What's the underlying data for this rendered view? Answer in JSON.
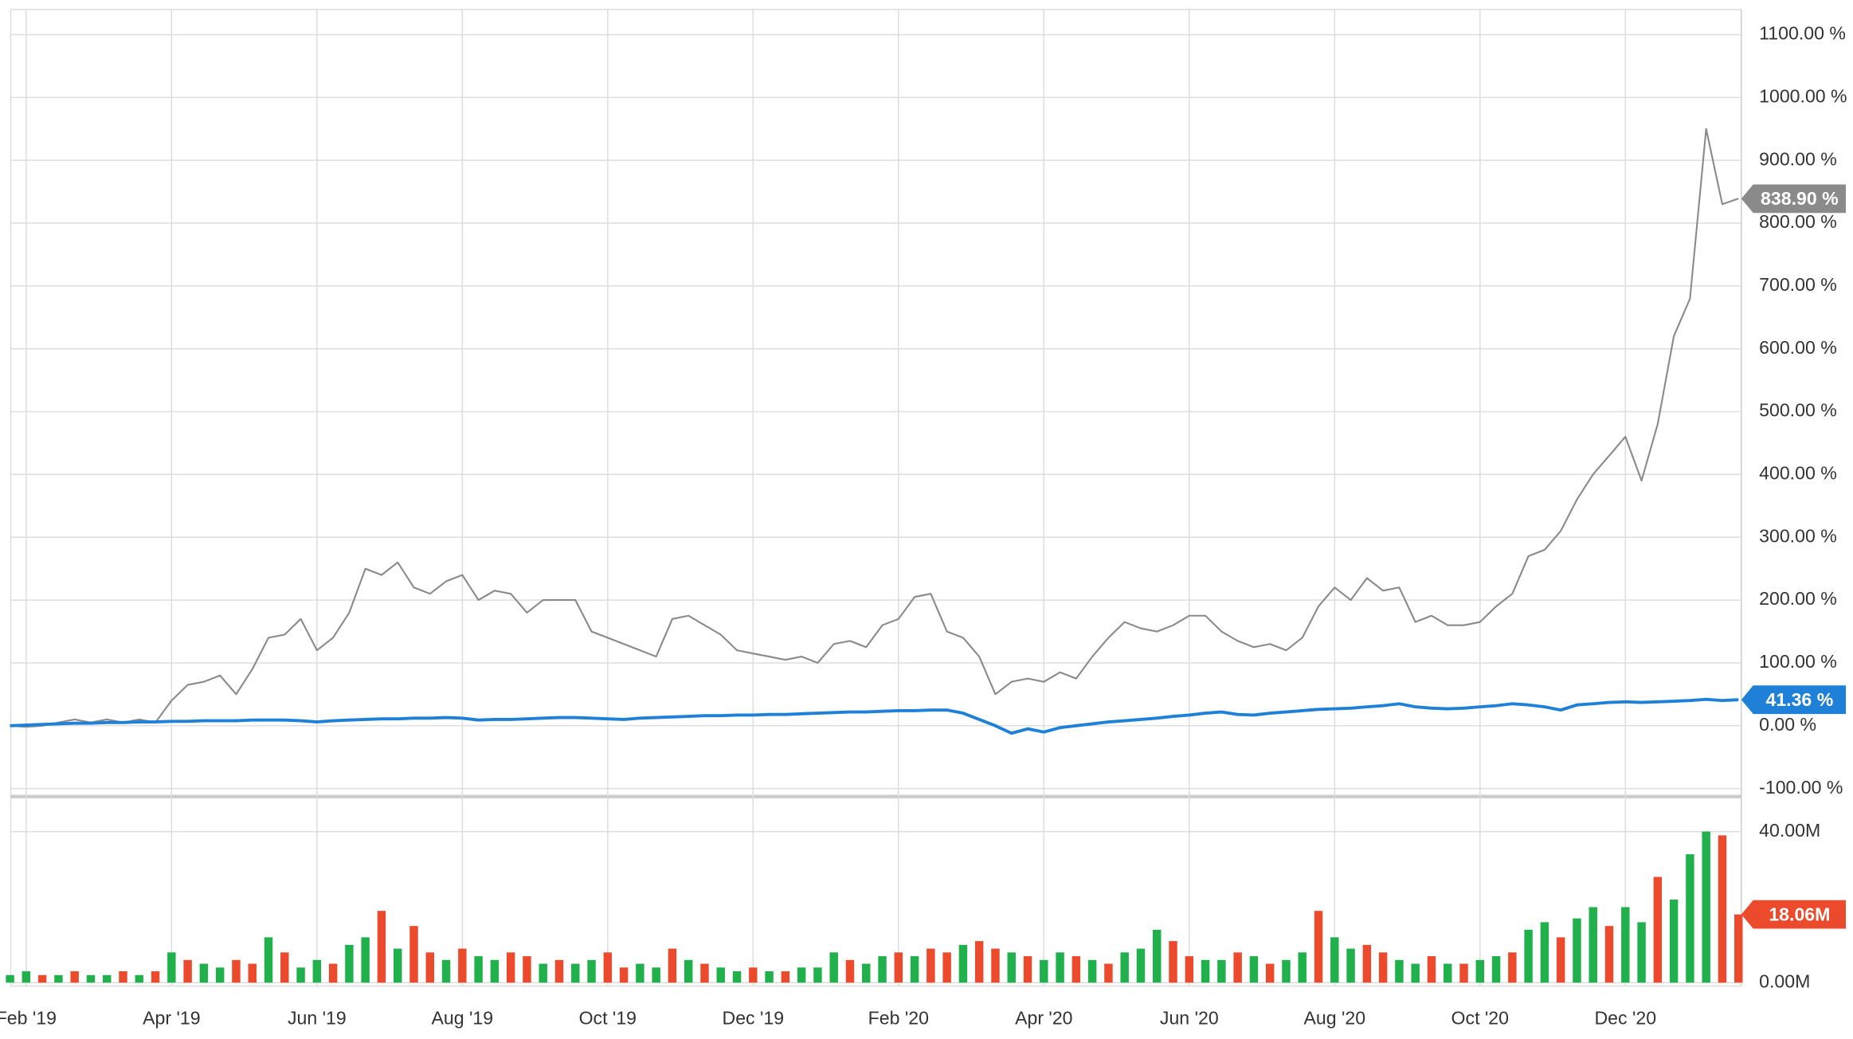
{
  "chart_data": {
    "type": "line",
    "categories": [
      null,
      "Feb '19",
      null,
      null,
      null,
      null,
      null,
      null,
      null,
      null,
      "Apr '19",
      null,
      null,
      null,
      null,
      null,
      null,
      null,
      null,
      "Jun '19",
      null,
      null,
      null,
      null,
      null,
      null,
      null,
      null,
      "Aug '19",
      null,
      null,
      null,
      null,
      null,
      null,
      null,
      null,
      "Oct '19",
      null,
      null,
      null,
      null,
      null,
      null,
      null,
      null,
      "Dec '19",
      null,
      null,
      null,
      null,
      null,
      null,
      null,
      null,
      "Feb '20",
      null,
      null,
      null,
      null,
      null,
      null,
      null,
      null,
      "Apr '20",
      null,
      null,
      null,
      null,
      null,
      null,
      null,
      null,
      "Jun '20",
      null,
      null,
      null,
      null,
      null,
      null,
      null,
      null,
      "Aug '20",
      null,
      null,
      null,
      null,
      null,
      null,
      null,
      null,
      "Oct '20",
      null,
      null,
      null,
      null,
      null,
      null,
      null,
      null,
      "Dec '20",
      null,
      null,
      null,
      null,
      null,
      null,
      null
    ],
    "ylim": [
      -108,
      1140
    ],
    "yticks": [
      {
        "value": -100,
        "label": "-100.00 %"
      },
      {
        "value": 0,
        "label": "0.00 %"
      },
      {
        "value": 100,
        "label": "100.00 %"
      },
      {
        "value": 200,
        "label": "200.00 %"
      },
      {
        "value": 300,
        "label": "300.00 %"
      },
      {
        "value": 400,
        "label": "400.00 %"
      },
      {
        "value": 500,
        "label": "500.00 %"
      },
      {
        "value": 600,
        "label": "600.00 %"
      },
      {
        "value": 700,
        "label": "700.00 %"
      },
      {
        "value": 800,
        "label": "800.00 %"
      },
      {
        "value": 900,
        "label": "900.00 %"
      },
      {
        "value": 1000,
        "label": "1000.00 %"
      },
      {
        "value": 1100,
        "label": "1100.00 %"
      }
    ],
    "y2lim": [
      -0.9,
      48.5
    ],
    "y2ticks": [
      {
        "value": 0,
        "label": "0.00M"
      },
      {
        "value": 40,
        "label": "40.00M"
      }
    ],
    "grid": true,
    "series": [
      {
        "color": "#8a8a8a",
        "values": [
          0,
          -2,
          0,
          5,
          10,
          5,
          10,
          5,
          10,
          5,
          40,
          65,
          70,
          80,
          50,
          90,
          140,
          145,
          170,
          120,
          140,
          180,
          250,
          240,
          260,
          220,
          210,
          230,
          240,
          200,
          215,
          210,
          180,
          200,
          200,
          200,
          150,
          140,
          130,
          120,
          110,
          170,
          175,
          160,
          145,
          120,
          115,
          110,
          105,
          110,
          100,
          130,
          135,
          125,
          160,
          170,
          205,
          210,
          150,
          140,
          110,
          50,
          70,
          75,
          70,
          85,
          75,
          110,
          140,
          165,
          155,
          150,
          160,
          175,
          175,
          150,
          135,
          125,
          130,
          120,
          140,
          190,
          220,
          200,
          235,
          215,
          220,
          165,
          175,
          160,
          160,
          165,
          190,
          210,
          270,
          280,
          310,
          360,
          400,
          430,
          460,
          390,
          480,
          620,
          680,
          950,
          830,
          838.9
        ],
        "value_labels": [
          null,
          null,
          null,
          null,
          null,
          null,
          null,
          null,
          null,
          null,
          null,
          null,
          null,
          null,
          null,
          null,
          null,
          null,
          null,
          null,
          null,
          null,
          null,
          null,
          null,
          null,
          null,
          null,
          null,
          null,
          null,
          null,
          null,
          null,
          null,
          null,
          null,
          null,
          null,
          null,
          null,
          null,
          null,
          null,
          null,
          null,
          null,
          null,
          null,
          null,
          null,
          null,
          null,
          null,
          null,
          null,
          null,
          null,
          null,
          null,
          null,
          null,
          null,
          null,
          null,
          null,
          null,
          null,
          null,
          null,
          null,
          null,
          null,
          null,
          null,
          null,
          null,
          null,
          null,
          null,
          null,
          null,
          null,
          null,
          null,
          null,
          null,
          null,
          null,
          null,
          null,
          null,
          null,
          null,
          null,
          null,
          null,
          null,
          null,
          null,
          null,
          null,
          null,
          null,
          null,
          null,
          null,
          "838.90 %"
        ]
      },
      {
        "color": "#1f80d8",
        "values": [
          0,
          1,
          2,
          3,
          4,
          4,
          5,
          5,
          6,
          6,
          7,
          7,
          8,
          8,
          8,
          9,
          9,
          9,
          8,
          6,
          8,
          9,
          10,
          11,
          11,
          12,
          12,
          13,
          12,
          9,
          10,
          10,
          11,
          12,
          13,
          13,
          12,
          11,
          10,
          12,
          13,
          14,
          15,
          16,
          16,
          17,
          17,
          18,
          18,
          19,
          20,
          21,
          22,
          22,
          23,
          24,
          24,
          25,
          25,
          20,
          10,
          0,
          -12,
          -5,
          -10,
          -3,
          0,
          3,
          6,
          8,
          10,
          12,
          15,
          17,
          20,
          22,
          18,
          17,
          20,
          22,
          24,
          26,
          27,
          28,
          30,
          32,
          35,
          30,
          28,
          27,
          28,
          30,
          32,
          35,
          33,
          30,
          25,
          33,
          35,
          37,
          38,
          37,
          38,
          39,
          40,
          42,
          40,
          41.36
        ],
        "value_labels": [
          null,
          null,
          null,
          null,
          null,
          null,
          null,
          null,
          null,
          null,
          null,
          null,
          null,
          null,
          null,
          null,
          null,
          null,
          null,
          null,
          null,
          null,
          null,
          null,
          null,
          null,
          null,
          null,
          null,
          null,
          null,
          null,
          null,
          null,
          null,
          null,
          null,
          null,
          null,
          null,
          null,
          null,
          null,
          null,
          null,
          null,
          null,
          null,
          null,
          null,
          null,
          null,
          null,
          null,
          null,
          null,
          null,
          null,
          null,
          null,
          null,
          null,
          null,
          null,
          null,
          null,
          null,
          null,
          null,
          null,
          null,
          null,
          null,
          null,
          null,
          null,
          null,
          null,
          null,
          null,
          null,
          null,
          null,
          null,
          null,
          null,
          null,
          null,
          null,
          null,
          null,
          null,
          null,
          null,
          null,
          null,
          null,
          null,
          null,
          null,
          null,
          null,
          null,
          null,
          null,
          null,
          null,
          "41.36 %"
        ]
      },
      {
        "type": "bar",
        "axis": "y2",
        "values": [
          2,
          3,
          2,
          2,
          3,
          2,
          2,
          3,
          2,
          3,
          8,
          6,
          5,
          4,
          6,
          5,
          12,
          8,
          4,
          6,
          5,
          10,
          12,
          19,
          9,
          15,
          8,
          6,
          9,
          7,
          6,
          8,
          7,
          5,
          6,
          5,
          6,
          8,
          4,
          5,
          4,
          9,
          6,
          5,
          4,
          3,
          4,
          3,
          3,
          4,
          4,
          8,
          6,
          5,
          7,
          8,
          7,
          9,
          8,
          10,
          11,
          9,
          8,
          7,
          6,
          8,
          7,
          6,
          5,
          8,
          9,
          14,
          11,
          7,
          6,
          6,
          8,
          7,
          5,
          6,
          8,
          19,
          12,
          9,
          10,
          8,
          6,
          5,
          7,
          5,
          5,
          6,
          7,
          8,
          14,
          16,
          12,
          17,
          20,
          15,
          20,
          16,
          28,
          22,
          34,
          40,
          39,
          18.06
        ],
        "value_labels": [
          null,
          null,
          null,
          null,
          null,
          null,
          null,
          null,
          null,
          null,
          null,
          null,
          null,
          null,
          null,
          null,
          null,
          null,
          null,
          null,
          null,
          null,
          null,
          null,
          null,
          null,
          null,
          null,
          null,
          null,
          null,
          null,
          null,
          null,
          null,
          null,
          null,
          null,
          null,
          null,
          null,
          null,
          null,
          null,
          null,
          null,
          null,
          null,
          null,
          null,
          null,
          null,
          null,
          null,
          null,
          null,
          null,
          null,
          null,
          null,
          null,
          null,
          null,
          null,
          null,
          null,
          null,
          null,
          null,
          null,
          null,
          null,
          null,
          null,
          null,
          null,
          null,
          null,
          null,
          null,
          null,
          null,
          null,
          null,
          null,
          null,
          null,
          null,
          null,
          null,
          null,
          null,
          null,
          null,
          null,
          null,
          null,
          null,
          null,
          null,
          null,
          null,
          null,
          null,
          null,
          null,
          null,
          "18.06M"
        ],
        "colors": [
          "#21b14c",
          "#21b14c",
          "#ec4a2c",
          "#21b14c",
          "#ec4a2c",
          "#21b14c",
          "#21b14c",
          "#ec4a2c",
          "#21b14c",
          "#ec4a2c",
          "#21b14c",
          "#ec4a2c",
          "#21b14c",
          "#21b14c",
          "#ec4a2c",
          "#ec4a2c",
          "#21b14c",
          "#ec4a2c",
          "#21b14c",
          "#21b14c",
          "#ec4a2c",
          "#21b14c",
          "#21b14c",
          "#ec4a2c",
          "#21b14c",
          "#ec4a2c",
          "#ec4a2c",
          "#21b14c",
          "#ec4a2c",
          "#21b14c",
          "#21b14c",
          "#ec4a2c",
          "#ec4a2c",
          "#21b14c",
          "#ec4a2c",
          "#21b14c",
          "#21b14c",
          "#ec4a2c",
          "#ec4a2c",
          "#21b14c",
          "#21b14c",
          "#ec4a2c",
          "#21b14c",
          "#ec4a2c",
          "#21b14c",
          "#21b14c",
          "#ec4a2c",
          "#21b14c",
          "#ec4a2c",
          "#21b14c",
          "#21b14c",
          "#21b14c",
          "#ec4a2c",
          "#21b14c",
          "#21b14c",
          "#ec4a2c",
          "#21b14c",
          "#ec4a2c",
          "#ec4a2c",
          "#21b14c",
          "#ec4a2c",
          "#ec4a2c",
          "#21b14c",
          "#ec4a2c",
          "#21b14c",
          "#21b14c",
          "#ec4a2c",
          "#21b14c",
          "#ec4a2c",
          "#21b14c",
          "#21b14c",
          "#21b14c",
          "#ec4a2c",
          "#ec4a2c",
          "#21b14c",
          "#21b14c",
          "#ec4a2c",
          "#21b14c",
          "#ec4a2c",
          "#21b14c",
          "#21b14c",
          "#ec4a2c",
          "#21b14c",
          "#21b14c",
          "#ec4a2c",
          "#ec4a2c",
          "#21b14c",
          "#21b14c",
          "#ec4a2c",
          "#21b14c",
          "#ec4a2c",
          "#21b14c",
          "#21b14c",
          "#ec4a2c",
          "#21b14c",
          "#21b14c",
          "#ec4a2c",
          "#21b14c",
          "#21b14c",
          "#ec4a2c",
          "#21b14c",
          "#21b14c",
          "#ec4a2c",
          "#21b14c",
          "#21b14c",
          "#21b14c",
          "#ec4a2c",
          "#ec4a2c"
        ],
        "color": "#ec4a2c"
      }
    ]
  }
}
